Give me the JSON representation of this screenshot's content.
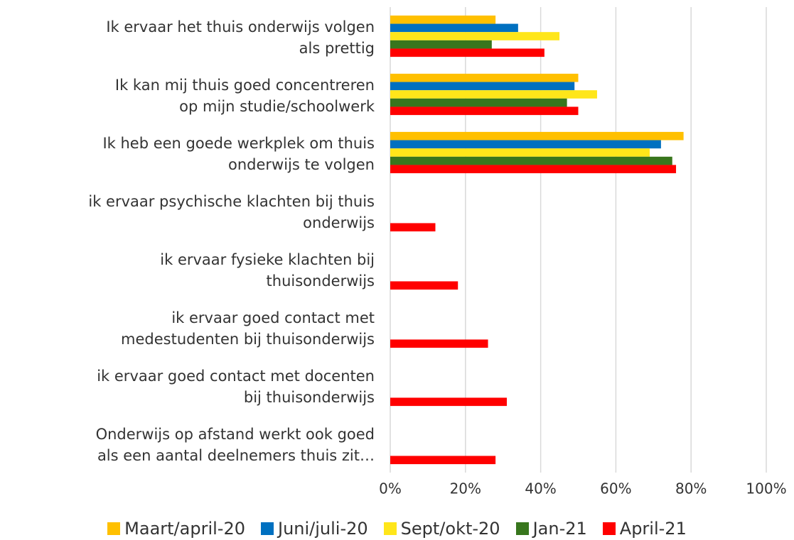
{
  "chart_data": {
    "type": "hbar",
    "categories": [
      "Ik ervaar het thuis onderwijs volgen\nals prettig",
      "Ik kan mij thuis goed concentreren\nop mijn studie/schoolwerk",
      "Ik heb een goede werkplek om thuis\nonderwijs te volgen",
      "ik ervaar psychische klachten bij thuis\nonderwijs",
      "ik ervaar fysieke klachten bij\nthuisonderwijs",
      "ik ervaar goed contact met\nmedestudenten bij thuisonderwijs",
      "ik ervaar goed contact met docenten\nbij thuisonderwijs",
      "Onderwijs op afstand werkt ook goed\nals een aantal deelnemers thuis zit…"
    ],
    "series": [
      {
        "name": "Maart/april-20",
        "color": "#ffc000",
        "values": [
          28,
          50,
          78,
          null,
          null,
          null,
          null,
          null
        ]
      },
      {
        "name": "Juni/juli-20",
        "color": "#0070c0",
        "values": [
          34,
          49,
          72,
          null,
          null,
          null,
          null,
          null
        ]
      },
      {
        "name": "Sept/okt-20",
        "color": "#ffe61a",
        "values": [
          45,
          55,
          69,
          null,
          null,
          null,
          null,
          null
        ]
      },
      {
        "name": "Jan-21",
        "color": "#38761d",
        "values": [
          27,
          47,
          75,
          null,
          null,
          null,
          null,
          null
        ]
      },
      {
        "name": "April-21",
        "color": "#ff0000",
        "values": [
          41,
          50,
          76,
          12,
          18,
          26,
          31,
          28
        ]
      }
    ],
    "xlim": [
      0,
      100
    ],
    "xticks": [
      {
        "value": 0,
        "label": "0%"
      },
      {
        "value": 20,
        "label": "20%"
      },
      {
        "value": 40,
        "label": "40%"
      },
      {
        "value": 60,
        "label": "60%"
      },
      {
        "value": 80,
        "label": "80%"
      },
      {
        "value": 100,
        "label": "100%"
      }
    ],
    "grid": true,
    "legend": "bottom"
  }
}
